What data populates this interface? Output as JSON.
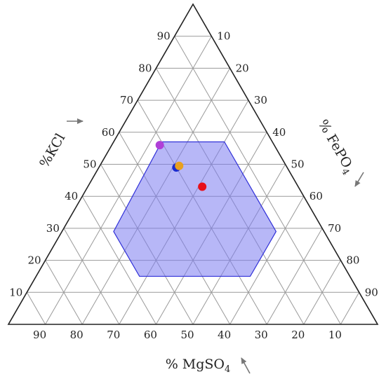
{
  "chart_data": {
    "type": "ternary",
    "components": {
      "left": "%KCl",
      "right_main": "% FePO",
      "right_sub": "4",
      "bottom_main": "% MgSO",
      "bottom_sub": "4"
    },
    "ticks": {
      "left": [
        "10",
        "20",
        "30",
        "40",
        "50",
        "60",
        "70",
        "80",
        "90"
      ],
      "right": [
        "10",
        "20",
        "30",
        "40",
        "50",
        "60",
        "70",
        "80",
        "90"
      ],
      "bottom": [
        "90",
        "80",
        "70",
        "60",
        "50",
        "40",
        "30",
        "20",
        "10"
      ]
    },
    "grid_step": 10,
    "region": {
      "color": "#7b7bf0",
      "points": [
        {
          "kcl": 57,
          "mgso4": 30,
          "fepo4": 13
        },
        {
          "kcl": 57,
          "mgso4": 13,
          "fepo4": 30
        },
        {
          "kcl": 29,
          "mgso4": 13,
          "fepo4": 58
        },
        {
          "kcl": 15,
          "mgso4": 27,
          "fepo4": 58
        },
        {
          "kcl": 15,
          "mgso4": 57,
          "fepo4": 28
        },
        {
          "kcl": 29,
          "mgso4": 57,
          "fepo4": 14
        }
      ]
    },
    "points": [
      {
        "kcl": 56,
        "mgso4": 31,
        "fepo4": 13,
        "color": "#b040d8"
      },
      {
        "kcl": 49,
        "mgso4": 30,
        "fepo4": 21,
        "color": "#1a2bd0"
      },
      {
        "kcl": 49.5,
        "mgso4": 29,
        "fepo4": 21.5,
        "color": "#e8a020"
      },
      {
        "kcl": 43,
        "mgso4": 26,
        "fepo4": 31,
        "color": "#e8101a"
      }
    ]
  }
}
